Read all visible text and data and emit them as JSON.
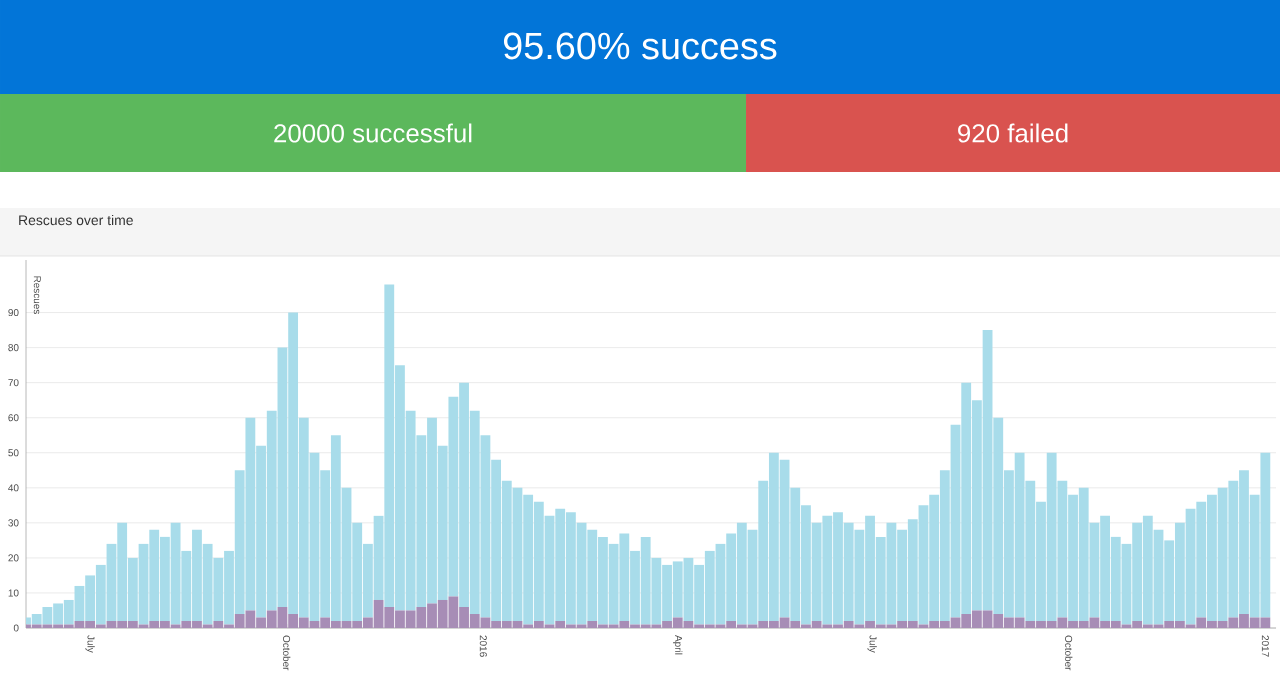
{
  "chart_data": [
    {
      "type": "other",
      "title": "95.60% success",
      "annotations": [
        "20000 successful",
        "920 failed"
      ],
      "colors": [
        "#0275d8",
        "#5cb85c",
        "#d9534f"
      ]
    },
    {
      "type": "bar",
      "title": "Rescues over time",
      "ylabel": "Rescues",
      "grid": "y",
      "stacked": true,
      "xlim": [
        "2015-06-01",
        "2017-01-06"
      ],
      "ylim": [
        0,
        105
      ],
      "yticks": [
        0,
        10,
        20,
        30,
        40,
        50,
        60,
        70,
        80,
        90
      ],
      "xticks": [
        {
          "value": "2015-07-01",
          "label": "July"
        },
        {
          "value": "2015-10-01",
          "label": "October"
        },
        {
          "value": "2016-01-01",
          "label": "2016"
        },
        {
          "value": "2016-04-01",
          "label": "April"
        },
        {
          "value": "2016-07-01",
          "label": "July"
        },
        {
          "value": "2016-10-01",
          "label": "October"
        },
        {
          "value": "2017-01-01",
          "label": "2017"
        }
      ],
      "x": [
        "2015-06-01",
        "2015-06-06",
        "2015-06-11",
        "2015-06-16",
        "2015-06-21",
        "2015-06-26",
        "2015-07-01",
        "2015-07-06",
        "2015-07-11",
        "2015-07-16",
        "2015-07-21",
        "2015-07-26",
        "2015-07-31",
        "2015-08-05",
        "2015-08-10",
        "2015-08-15",
        "2015-08-20",
        "2015-08-25",
        "2015-08-30",
        "2015-09-04",
        "2015-09-09",
        "2015-09-14",
        "2015-09-19",
        "2015-09-24",
        "2015-09-29",
        "2015-10-04",
        "2015-10-09",
        "2015-10-14",
        "2015-10-19",
        "2015-10-24",
        "2015-10-29",
        "2015-11-03",
        "2015-11-08",
        "2015-11-13",
        "2015-11-18",
        "2015-11-23",
        "2015-11-28",
        "2015-12-03",
        "2015-12-08",
        "2015-12-13",
        "2015-12-18",
        "2015-12-23",
        "2015-12-28",
        "2016-01-02",
        "2016-01-07",
        "2016-01-12",
        "2016-01-17",
        "2016-01-22",
        "2016-01-27",
        "2016-02-01",
        "2016-02-06",
        "2016-02-11",
        "2016-02-16",
        "2016-02-21",
        "2016-02-26",
        "2016-03-02",
        "2016-03-07",
        "2016-03-12",
        "2016-03-17",
        "2016-03-22",
        "2016-03-27",
        "2016-04-01",
        "2016-04-06",
        "2016-04-11",
        "2016-04-16",
        "2016-04-21",
        "2016-04-26",
        "2016-05-01",
        "2016-05-06",
        "2016-05-11",
        "2016-05-16",
        "2016-05-21",
        "2016-05-26",
        "2016-05-31",
        "2016-06-05",
        "2016-06-10",
        "2016-06-15",
        "2016-06-20",
        "2016-06-25",
        "2016-06-30",
        "2016-07-05",
        "2016-07-10",
        "2016-07-15",
        "2016-07-20",
        "2016-07-25",
        "2016-07-30",
        "2016-08-04",
        "2016-08-09",
        "2016-08-14",
        "2016-08-19",
        "2016-08-24",
        "2016-08-29",
        "2016-09-03",
        "2016-09-08",
        "2016-09-13",
        "2016-09-18",
        "2016-09-23",
        "2016-09-28",
        "2016-10-03",
        "2016-10-08",
        "2016-10-13",
        "2016-10-18",
        "2016-10-23",
        "2016-10-28",
        "2016-11-02",
        "2016-11-07",
        "2016-11-12",
        "2016-11-17",
        "2016-11-22",
        "2016-11-27",
        "2016-12-02",
        "2016-12-07",
        "2016-12-12",
        "2016-12-17",
        "2016-12-22",
        "2016-12-27",
        "2017-01-01"
      ],
      "series": [
        {
          "color": "#a78db6",
          "values": [
            1,
            1,
            1,
            1,
            1,
            2,
            2,
            1,
            2,
            2,
            2,
            1,
            2,
            2,
            1,
            2,
            2,
            1,
            2,
            1,
            4,
            5,
            3,
            5,
            6,
            4,
            3,
            2,
            3,
            2,
            2,
            2,
            3,
            8,
            6,
            5,
            5,
            6,
            7,
            8,
            9,
            6,
            4,
            3,
            2,
            2,
            2,
            1,
            2,
            1,
            2,
            1,
            1,
            2,
            1,
            1,
            2,
            1,
            1,
            1,
            2,
            3,
            2,
            1,
            1,
            1,
            2,
            1,
            1,
            2,
            2,
            3,
            2,
            1,
            2,
            1,
            1,
            2,
            1,
            2,
            1,
            1,
            2,
            2,
            1,
            2,
            2,
            3,
            4,
            5,
            5,
            4,
            3,
            3,
            2,
            2,
            2,
            3,
            2,
            2,
            3,
            2,
            2,
            1,
            2,
            1,
            1,
            2,
            2,
            1,
            3,
            2,
            2,
            3,
            4,
            3,
            3
          ]
        },
        {
          "color": "#a8dcea",
          "values": [
            2,
            3,
            5,
            6,
            7,
            10,
            13,
            17,
            22,
            28,
            18,
            23,
            26,
            24,
            29,
            20,
            26,
            23,
            18,
            21,
            41,
            55,
            49,
            57,
            74,
            86,
            57,
            48,
            42,
            53,
            38,
            28,
            21,
            24,
            92,
            70,
            57,
            49,
            53,
            44,
            57,
            64,
            58,
            52,
            46,
            40,
            38,
            37,
            34,
            31,
            32,
            32,
            29,
            26,
            25,
            23,
            25,
            21,
            25,
            19,
            16,
            16,
            18,
            17,
            21,
            23,
            25,
            29,
            27,
            40,
            48,
            45,
            38,
            34,
            28,
            31,
            32,
            28,
            27,
            30,
            25,
            29,
            26,
            29,
            34,
            36,
            43,
            55,
            66,
            60,
            80,
            56,
            42,
            47,
            40,
            34,
            48,
            39,
            36,
            38,
            27,
            30,
            24,
            23,
            28,
            31,
            27,
            23,
            28,
            33,
            33,
            36,
            38,
            39,
            41,
            35,
            47
          ]
        }
      ]
    }
  ]
}
